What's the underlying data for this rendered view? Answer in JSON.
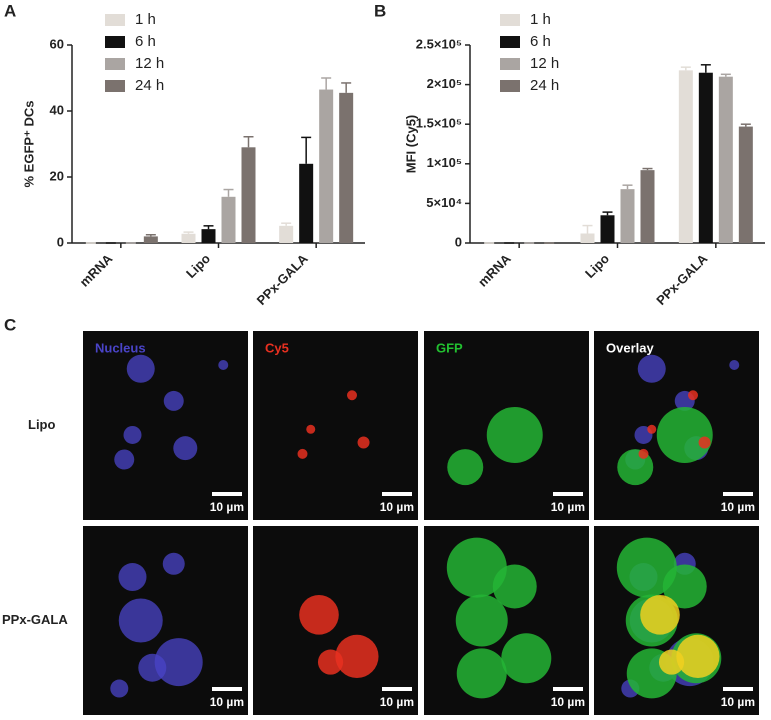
{
  "chart_data": [
    {
      "type": "bar",
      "panel": "A",
      "ylabel": "% EGFP⁺ DCs",
      "categories": [
        "mRNA",
        "Lipo",
        "PPx-GALA"
      ],
      "series": [
        {
          "name": "1 h",
          "color": "#e2ddd7",
          "values": [
            0,
            2.8,
            5.2
          ],
          "errors": [
            0,
            0.5,
            0.8
          ]
        },
        {
          "name": "6 h",
          "color": "#111111",
          "values": [
            0,
            4.2,
            24
          ],
          "errors": [
            0,
            1,
            8
          ]
        },
        {
          "name": "12 h",
          "color": "#aaa5a2",
          "values": [
            0,
            14,
            46.5
          ],
          "errors": [
            0,
            2.2,
            3.5
          ]
        },
        {
          "name": "24 h",
          "color": "#7b726e",
          "values": [
            2,
            29,
            45.5
          ],
          "errors": [
            0.5,
            3.2,
            3
          ]
        }
      ],
      "ylim": [
        0,
        60
      ],
      "yticks": [
        0,
        20,
        40,
        60
      ],
      "legend": "upper left"
    },
    {
      "type": "bar",
      "panel": "B",
      "ylabel": "MFI (Cy5)",
      "categories": [
        "mRNA",
        "Lipo",
        "PPx-GALA"
      ],
      "series": [
        {
          "name": "1 h",
          "color": "#e2ddd7",
          "values": [
            0,
            12000,
            218000
          ],
          "errors": [
            0,
            10000,
            4000
          ]
        },
        {
          "name": "6 h",
          "color": "#111111",
          "values": [
            0,
            35000,
            215000
          ],
          "errors": [
            0,
            4000,
            10000
          ]
        },
        {
          "name": "12 h",
          "color": "#aaa5a2",
          "values": [
            0,
            68000,
            210000
          ],
          "errors": [
            0,
            5000,
            3000
          ]
        },
        {
          "name": "24 h",
          "color": "#7b726e",
          "values": [
            0,
            92000,
            147000
          ],
          "errors": [
            0,
            2000,
            3000
          ]
        }
      ],
      "ylim": [
        0,
        250000
      ],
      "yticks": [
        0,
        {
          "value": 50000,
          "label": "5×10⁴"
        },
        {
          "value": 100000,
          "label": "1×10⁵"
        },
        {
          "value": 150000,
          "label": "1.5×10⁵"
        },
        {
          "value": 200000,
          "label": "2×10⁵"
        },
        {
          "value": 250000,
          "label": "2.5×10⁵"
        }
      ],
      "legend": "upper left"
    }
  ],
  "micrographs": {
    "panel": "C",
    "columns": [
      {
        "label": "Nucleus",
        "color": "#4a44c8"
      },
      {
        "label": "Cy5",
        "color": "#e83020"
      },
      {
        "label": "GFP",
        "color": "#22c030"
      },
      {
        "label": "Overlay",
        "color": "#ffffff"
      }
    ],
    "rows": [
      "Lipo",
      "PPx-GALA"
    ],
    "scale_bar": "10 µm"
  }
}
